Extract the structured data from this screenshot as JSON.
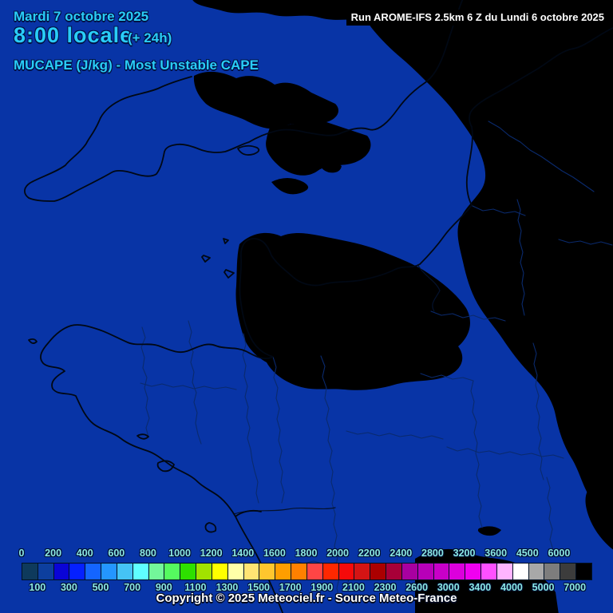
{
  "header": {
    "date": "Mardi 7 octobre 2025",
    "time": "8:00 locale",
    "offset": "(+ 24h)",
    "variable": "MUCAPE (J/kg) - Most Unstable CAPE"
  },
  "run_info": {
    "text": "Run AROME-IFS 2.5km 6 Z du Lundi 6 octobre 2025"
  },
  "footer": {
    "copyright": "Copyright © 2025 Meteociel.fr - Source Meteo-France"
  },
  "text_colors": {
    "header_cyan": "#29cdf8",
    "legend_cyan": "#8ce8e6",
    "run_text": "#ffffff",
    "copyright": "#ffffff"
  },
  "map": {
    "colors": {
      "base": "#0834a6",
      "cape_low_patch": "#17415f",
      "coastline": "#010814",
      "border": "#0a2a6d",
      "river": "#04122e"
    }
  },
  "legend": {
    "boxes": [
      {
        "range": "0-100",
        "color": "#0e3a5c"
      },
      {
        "range": "100-200",
        "color": "#0d3f9e"
      },
      {
        "range": "200-300",
        "color": "#0a04d6"
      },
      {
        "range": "300-400",
        "color": "#0520ff"
      },
      {
        "range": "400-500",
        "color": "#1465ff"
      },
      {
        "range": "500-600",
        "color": "#2496ff"
      },
      {
        "range": "600-700",
        "color": "#45c3f5"
      },
      {
        "range": "700-800",
        "color": "#5fffff"
      },
      {
        "range": "800-900",
        "color": "#73f79a"
      },
      {
        "range": "900-1000",
        "color": "#55fa5f"
      },
      {
        "range": "1000-1100",
        "color": "#2ee000"
      },
      {
        "range": "1100-1200",
        "color": "#a2e200"
      },
      {
        "range": "1200-1300",
        "color": "#ffff00"
      },
      {
        "range": "1300-1400",
        "color": "#ffffa8"
      },
      {
        "range": "1400-1500",
        "color": "#ffe473"
      },
      {
        "range": "1500-1600",
        "color": "#ffc62e"
      },
      {
        "range": "1600-1700",
        "color": "#ff9e00"
      },
      {
        "range": "1700-1800",
        "color": "#ff8000"
      },
      {
        "range": "1800-1900",
        "color": "#ff4545"
      },
      {
        "range": "1900-2000",
        "color": "#ff2800"
      },
      {
        "range": "2000-2100",
        "color": "#f50a0a"
      },
      {
        "range": "2100-2200",
        "color": "#d41414"
      },
      {
        "range": "2200-2300",
        "color": "#ab0000"
      },
      {
        "range": "2300-2400",
        "color": "#a80038"
      },
      {
        "range": "2400-2600",
        "color": "#a800a0"
      },
      {
        "range": "2600-2800",
        "color": "#b800b8"
      },
      {
        "range": "2800-3000",
        "color": "#c800c8"
      },
      {
        "range": "3000-3200",
        "color": "#dc00dc"
      },
      {
        "range": "3200-3400",
        "color": "#f000f0"
      },
      {
        "range": "3400-3600",
        "color": "#ff50ff"
      },
      {
        "range": "3600-4000",
        "color": "#ffb4ff"
      },
      {
        "range": "4000-4500",
        "color": "#ffffff"
      },
      {
        "range": "4500-5000",
        "color": "#a8a8a8"
      },
      {
        "range": "5000-6000",
        "color": "#7d7d7d"
      },
      {
        "range": "6000-7000",
        "color": "#3c3c3c"
      },
      {
        "range": "7000+",
        "color": "#000000"
      }
    ],
    "top_labels": [
      {
        "text": "0",
        "edge": 0
      },
      {
        "text": "200",
        "edge": 2
      },
      {
        "text": "400",
        "edge": 4
      },
      {
        "text": "600",
        "edge": 6
      },
      {
        "text": "800",
        "edge": 8
      },
      {
        "text": "1000",
        "edge": 10
      },
      {
        "text": "1200",
        "edge": 12
      },
      {
        "text": "1400",
        "edge": 14
      },
      {
        "text": "1600",
        "edge": 16
      },
      {
        "text": "1800",
        "edge": 18
      },
      {
        "text": "2000",
        "edge": 20
      },
      {
        "text": "2200",
        "edge": 22
      },
      {
        "text": "2400",
        "edge": 24
      },
      {
        "text": "2800",
        "edge": 26
      },
      {
        "text": "3200",
        "edge": 28
      },
      {
        "text": "3600",
        "edge": 30
      },
      {
        "text": "4500",
        "edge": 32
      },
      {
        "text": "6000",
        "edge": 34
      }
    ],
    "bottom_labels": [
      {
        "text": "100",
        "edge": 1
      },
      {
        "text": "300",
        "edge": 3
      },
      {
        "text": "500",
        "edge": 5
      },
      {
        "text": "700",
        "edge": 7
      },
      {
        "text": "900",
        "edge": 9
      },
      {
        "text": "1100",
        "edge": 11
      },
      {
        "text": "1300",
        "edge": 13
      },
      {
        "text": "1500",
        "edge": 15
      },
      {
        "text": "1700",
        "edge": 17
      },
      {
        "text": "1900",
        "edge": 19
      },
      {
        "text": "2100",
        "edge": 21
      },
      {
        "text": "2300",
        "edge": 23
      },
      {
        "text": "2600",
        "edge": 25
      },
      {
        "text": "3000",
        "edge": 27
      },
      {
        "text": "3400",
        "edge": 29
      },
      {
        "text": "4000",
        "edge": 31
      },
      {
        "text": "5000",
        "edge": 33
      },
      {
        "text": "7000",
        "edge": 35
      }
    ]
  }
}
